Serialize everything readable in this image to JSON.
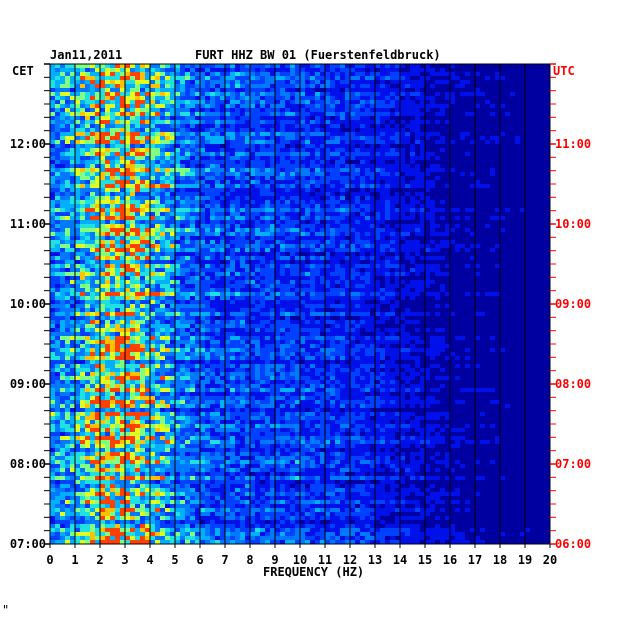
{
  "header": {
    "date": "Jan11,2011",
    "station": "FURT HHZ BW 01 (Fuerstenfeldbruck)"
  },
  "footer": {
    "corner_mark": "\""
  },
  "colors": {
    "background": "#0000a0",
    "left_axis": "#000000",
    "right_axis": "#ff0000",
    "grid": "#000000"
  },
  "chart_data": {
    "type": "heatmap",
    "title": "FURT HHZ BW 01 (Fuerstenfeldbruck)",
    "subtitle": "Jan11,2011",
    "xlabel": "FREQUENCY (HZ)",
    "xlim": [
      0,
      20
    ],
    "x_ticks": [
      "0",
      "1",
      "2",
      "3",
      "4",
      "5",
      "6",
      "7",
      "8",
      "9",
      "10",
      "11",
      "12",
      "13",
      "14",
      "15",
      "16",
      "17",
      "18",
      "19",
      "20"
    ],
    "left_axis": {
      "label": "CET",
      "ticks": [
        "12:00",
        "11:00",
        "10:00",
        "09:00",
        "08:00",
        "07:00"
      ],
      "range": [
        "07:00",
        "13:00"
      ]
    },
    "right_axis": {
      "label": "UTC",
      "ticks": [
        "11:00",
        "10:00",
        "09:00",
        "08:00",
        "07:00",
        "06:00"
      ],
      "range": [
        "06:00",
        "12:00"
      ]
    },
    "energy_profile": {
      "description_values_hz": [
        0,
        1,
        2,
        3,
        4,
        5,
        6,
        8,
        10,
        12,
        14,
        16,
        20
      ],
      "relative_intensity": [
        0.45,
        0.6,
        0.85,
        0.95,
        0.75,
        0.5,
        0.38,
        0.33,
        0.3,
        0.26,
        0.18,
        0.1,
        0.06
      ]
    }
  }
}
